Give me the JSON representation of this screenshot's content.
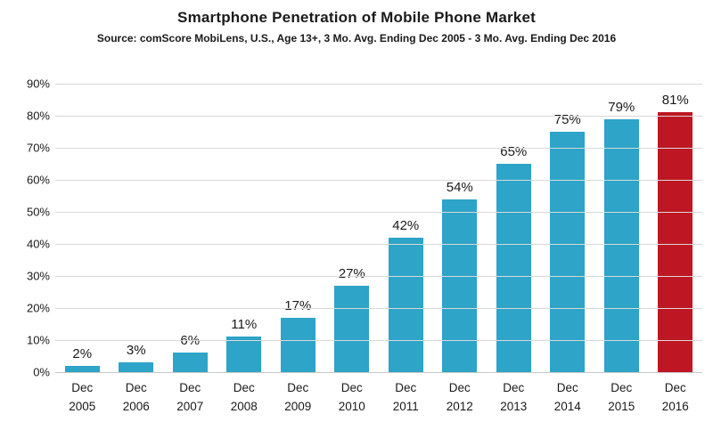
{
  "title": "Smartphone Penetration of Mobile Phone Market",
  "subtitle": "Source: comScore MobiLens, U.S., Age 13+, 3 Mo. Avg. Ending Dec 2005 - 3 Mo. Avg. Ending Dec 2016",
  "colors": {
    "bar": "#2da4c8",
    "highlight": "#be1622",
    "grid": "#d9d9d9",
    "text": "#1a1a1a"
  },
  "chart_data": {
    "type": "bar",
    "categories": [
      "Dec 2005",
      "Dec 2006",
      "Dec 2007",
      "Dec 2008",
      "Dec 2009",
      "Dec 2010",
      "Dec 2011",
      "Dec 2012",
      "Dec 2013",
      "Dec 2014",
      "Dec 2015",
      "Dec 2016"
    ],
    "values": [
      2,
      3,
      6,
      11,
      17,
      27,
      42,
      54,
      65,
      75,
      79,
      81
    ],
    "value_labels": [
      "2%",
      "3%",
      "6%",
      "11%",
      "17%",
      "27%",
      "42%",
      "54%",
      "65%",
      "75%",
      "79%",
      "81%"
    ],
    "highlight_index": 11,
    "title": "Smartphone Penetration of Mobile Phone Market",
    "xlabel": "",
    "ylabel": "",
    "ylim": [
      0,
      90
    ],
    "ytick_step": 10,
    "ytick_labels": [
      "0%",
      "10%",
      "20%",
      "30%",
      "40%",
      "50%",
      "60%",
      "70%",
      "80%",
      "90%"
    ],
    "grid": true,
    "legend": "none"
  }
}
